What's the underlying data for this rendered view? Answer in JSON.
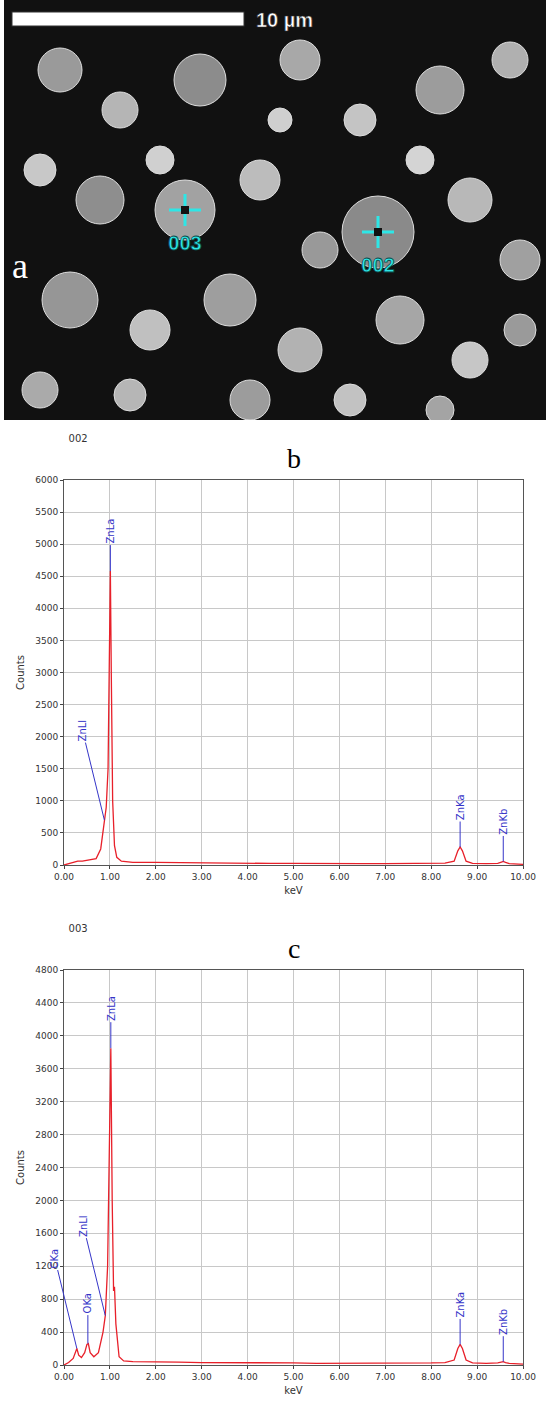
{
  "micrograph": {
    "label": "a",
    "scale_bar": "10 µm",
    "markers": [
      "003",
      "002"
    ]
  },
  "chart_data": [
    {
      "type": "line",
      "label": "b",
      "title": "002",
      "x_label": "keV",
      "y_label": "Counts",
      "color": "#e8202a",
      "grid": true,
      "xlim": [
        0,
        10
      ],
      "xticks": [
        {
          "value": 0,
          "label": "0.00"
        },
        {
          "value": 1,
          "label": "1.00"
        },
        {
          "value": 2,
          "label": "2.00"
        },
        {
          "value": 3,
          "label": "3.00"
        },
        {
          "value": 4,
          "label": "4.00"
        },
        {
          "value": 5,
          "label": "5.00"
        },
        {
          "value": 6,
          "label": "6.00"
        },
        {
          "value": 7,
          "label": "7.00"
        },
        {
          "value": 8,
          "label": "8.00"
        },
        {
          "value": 9,
          "label": "9.00"
        },
        {
          "value": 10,
          "label": "10.00"
        }
      ],
      "ylim": [
        0,
        6000
      ],
      "yticks": [
        0,
        500,
        1000,
        1500,
        2000,
        2500,
        3000,
        3500,
        4000,
        4500,
        5000,
        5500,
        6000
      ],
      "x": [
        0.0,
        0.1,
        0.2,
        0.3,
        0.4,
        0.5,
        0.6,
        0.7,
        0.8,
        0.85,
        0.88,
        0.92,
        0.96,
        0.99,
        1.01,
        1.03,
        1.06,
        1.1,
        1.15,
        1.25,
        1.5,
        2.0,
        2.5,
        3.0,
        3.5,
        4.0,
        4.5,
        5.0,
        5.5,
        6.0,
        6.5,
        7.0,
        7.5,
        8.0,
        8.3,
        8.5,
        8.58,
        8.63,
        8.68,
        8.76,
        8.9,
        9.2,
        9.45,
        9.53,
        9.57,
        9.62,
        9.7,
        10.0
      ],
      "values": [
        0,
        20,
        50,
        60,
        60,
        70,
        80,
        100,
        250,
        500,
        700,
        900,
        1500,
        3500,
        4580,
        3000,
        1000,
        300,
        120,
        60,
        40,
        40,
        35,
        30,
        30,
        25,
        25,
        25,
        20,
        20,
        20,
        20,
        20,
        25,
        30,
        60,
        220,
        280,
        220,
        60,
        25,
        20,
        25,
        45,
        55,
        40,
        20,
        10
      ],
      "peaks": [
        {
          "label": "ZnLl",
          "x": 0.88
        },
        {
          "label": "ZnLa",
          "x": 1.01
        },
        {
          "label": "ZnKa",
          "x": 8.63
        },
        {
          "label": "ZnKb",
          "x": 9.57
        }
      ]
    },
    {
      "type": "line",
      "label": "c",
      "title": "003",
      "x_label": "keV",
      "y_label": "Counts",
      "color": "#e8202a",
      "grid": true,
      "xlim": [
        0,
        10
      ],
      "xticks": [
        {
          "value": 0,
          "label": "0.00"
        },
        {
          "value": 1,
          "label": "1.00"
        },
        {
          "value": 2,
          "label": "2.00"
        },
        {
          "value": 3,
          "label": "3.00"
        },
        {
          "value": 4,
          "label": "4.00"
        },
        {
          "value": 5,
          "label": "5.00"
        },
        {
          "value": 6,
          "label": "6.00"
        },
        {
          "value": 7,
          "label": "7.00"
        },
        {
          "value": 8,
          "label": "8.00"
        },
        {
          "value": 9,
          "label": "9.00"
        },
        {
          "value": 10,
          "label": "10.00"
        }
      ],
      "ylim": [
        0,
        4800
      ],
      "yticks": [
        0,
        400,
        800,
        1200,
        1600,
        2000,
        2400,
        2800,
        3200,
        3600,
        4000,
        4400,
        4800
      ],
      "x": [
        0.0,
        0.1,
        0.2,
        0.25,
        0.28,
        0.32,
        0.38,
        0.45,
        0.5,
        0.53,
        0.57,
        0.65,
        0.75,
        0.85,
        0.9,
        0.95,
        0.99,
        1.02,
        1.05,
        1.08,
        1.1,
        1.13,
        1.2,
        1.3,
        1.5,
        2.0,
        2.5,
        3.0,
        3.5,
        4.0,
        4.5,
        5.0,
        5.5,
        6.0,
        6.5,
        7.0,
        7.5,
        8.0,
        8.3,
        8.5,
        8.58,
        8.63,
        8.68,
        8.76,
        8.9,
        9.2,
        9.45,
        9.53,
        9.57,
        9.62,
        9.7,
        10.0
      ],
      "values": [
        0,
        30,
        80,
        150,
        200,
        120,
        90,
        150,
        250,
        260,
        150,
        100,
        150,
        400,
        600,
        1200,
        3000,
        3850,
        2000,
        900,
        950,
        500,
        100,
        50,
        40,
        40,
        35,
        30,
        30,
        25,
        25,
        25,
        20,
        20,
        20,
        20,
        20,
        25,
        30,
        60,
        200,
        250,
        200,
        60,
        25,
        20,
        25,
        35,
        40,
        30,
        20,
        10
      ],
      "peaks": [
        {
          "label": "CKa",
          "x": 0.28
        },
        {
          "label": "OKa",
          "x": 0.52
        },
        {
          "label": "ZnLl",
          "x": 0.9
        },
        {
          "label": "ZnLa",
          "x": 1.02
        },
        {
          "label": "ZnKa",
          "x": 8.63
        },
        {
          "label": "ZnKb",
          "x": 9.57
        }
      ]
    }
  ]
}
